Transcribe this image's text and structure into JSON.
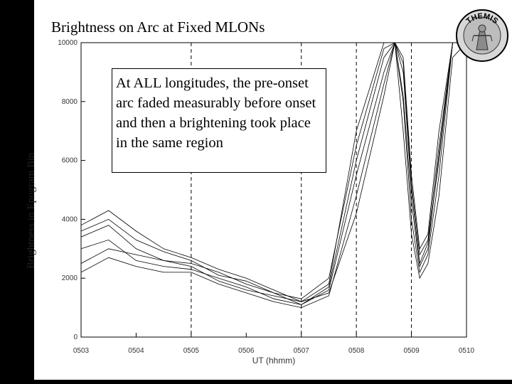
{
  "chart_data": {
    "type": "line",
    "title": "Brightness on Arc at Fixed MLONs",
    "ylabel": "Brightness in Epogram Bin",
    "xlabel": "UT (hhmm)",
    "x_ticks": [
      "0503",
      "0504",
      "0505",
      "0506",
      "0507",
      "0508",
      "0509",
      "0510"
    ],
    "y_ticks": [
      "0",
      "2000",
      "4000",
      "6000",
      "8000",
      "10000"
    ],
    "xlim": [
      "0503",
      "0510"
    ],
    "ylim": [
      0,
      10000
    ],
    "vertical_reference_lines": [
      "0505",
      "0507",
      "0508",
      "0509"
    ],
    "x_minutes": [
      0,
      0.5,
      1,
      1.5,
      2,
      2.5,
      3,
      3.5,
      4,
      4.5,
      5,
      5.5,
      5.7,
      5.85,
      6,
      6.15,
      6.3,
      6.5,
      6.75,
      7
    ],
    "series": [
      {
        "values": [
          3400,
          3800,
          3000,
          2600,
          2500,
          2200,
          1800,
          1500,
          1300,
          2000,
          6500,
          9800,
          10000,
          9000,
          5000,
          2500,
          3200,
          6000,
          10000,
          10000
        ]
      },
      {
        "values": [
          3000,
          3300,
          2600,
          2400,
          2300,
          2000,
          1700,
          1300,
          1100,
          1600,
          5500,
          9000,
          10000,
          8000,
          4000,
          2200,
          2800,
          5500,
          10000,
          10000
        ]
      },
      {
        "values": [
          2500,
          3000,
          2800,
          2600,
          2400,
          1900,
          1600,
          1400,
          1200,
          1500,
          4200,
          8200,
          10000,
          7000,
          3500,
          2000,
          2500,
          4800,
          9500,
          10000
        ]
      },
      {
        "values": [
          3800,
          4300,
          3600,
          3000,
          2700,
          2300,
          2000,
          1600,
          1200,
          1800,
          7000,
          10000,
          10000,
          9500,
          5500,
          3000,
          3500,
          7000,
          10000,
          10000
        ]
      },
      {
        "values": [
          2200,
          2700,
          2400,
          2200,
          2200,
          1800,
          1500,
          1200,
          1000,
          1400,
          4800,
          8600,
          10000,
          8200,
          4600,
          2400,
          3000,
          6200,
          10000,
          10000
        ]
      },
      {
        "values": [
          3600,
          4000,
          3300,
          2900,
          2600,
          2100,
          1900,
          1500,
          1100,
          1700,
          6000,
          9500,
          10000,
          9300,
          5200,
          2800,
          3300,
          6500,
          10000,
          10000
        ]
      }
    ],
    "annotations": [
      "At ALL longitudes, the pre-onset arc faded measurably before onset and then a brightening took place in the same region"
    ]
  },
  "logo_text": "THEMIS",
  "colors": {
    "background": "#000000",
    "slide": "#ffffff",
    "lines": "#000000"
  }
}
